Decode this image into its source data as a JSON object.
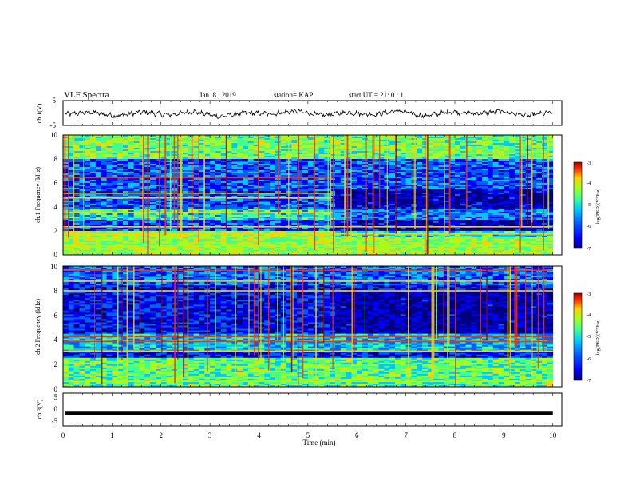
{
  "header": {
    "title": "VLF Spectra",
    "date": "Jan. 8 , 2019",
    "station": "station= KAP",
    "start": "start UT = 21: 0 : 1"
  },
  "colors": {
    "spectrogram_scale": [
      "#00007f",
      "#0000ff",
      "#0060ff",
      "#00c8ff",
      "#40ff90",
      "#a0ff20",
      "#ffd000",
      "#ff3000",
      "#a00000"
    ],
    "trace": "#000000",
    "frame": "#000000"
  },
  "chart_data": [
    {
      "type": "line",
      "panel": "ch1-waveform",
      "ylabel": "ch.1(V)",
      "ylim": [
        -5,
        5
      ],
      "yticks": [
        "5",
        "-5"
      ],
      "xlim": [
        0,
        10
      ],
      "description_values": "noisy waveform oscillating roughly between -2 and 1 V",
      "values": [
        -0.5,
        0.3,
        -1.2,
        0.4,
        -0.8,
        0.6,
        -1.5,
        0.1,
        -0.4,
        0.8,
        -1.0,
        0.2,
        -0.6,
        0.9,
        -1.3,
        0.5,
        -0.2,
        0.7,
        -1.1,
        0.3
      ]
    },
    {
      "type": "heatmap",
      "panel": "ch1-spectrogram",
      "ylabel": "ch.1 Frequency (kHz)",
      "ylim": [
        0,
        10
      ],
      "yticks": [
        "0",
        "2",
        "4",
        "6",
        "8",
        "10"
      ],
      "xlim": [
        0,
        10
      ],
      "colorbar": {
        "label": "log(PSD)(V²/Hz)",
        "range": [
          -7,
          -3
        ],
        "ticks": [
          "-3",
          "-4",
          "-5",
          "-6",
          "-7"
        ]
      }
    },
    {
      "type": "heatmap",
      "panel": "ch2-spectrogram",
      "ylabel": "ch.2 Frequency (kHz)",
      "ylim": [
        0,
        10
      ],
      "yticks": [
        "0",
        "2",
        "4",
        "6",
        "8",
        "10"
      ],
      "xlim": [
        0,
        10
      ],
      "colorbar": {
        "label": "log(PSD)(V²/Hz)",
        "range": [
          -7,
          -3
        ],
        "ticks": [
          "-3",
          "-4",
          "-5",
          "-6",
          "-7"
        ]
      }
    },
    {
      "type": "line",
      "panel": "ch3-waveform",
      "ylabel": "ch.3(V)",
      "ylim": [
        -5,
        5
      ],
      "yticks": [
        "5",
        "0",
        "-5"
      ],
      "xlim": [
        0,
        10
      ],
      "values": [
        -1.2,
        -1.2
      ]
    }
  ],
  "xaxis": {
    "label": "Time (min)",
    "ticks": [
      "0",
      "1",
      "2",
      "3",
      "4",
      "5",
      "6",
      "7",
      "8",
      "9",
      "10"
    ]
  }
}
